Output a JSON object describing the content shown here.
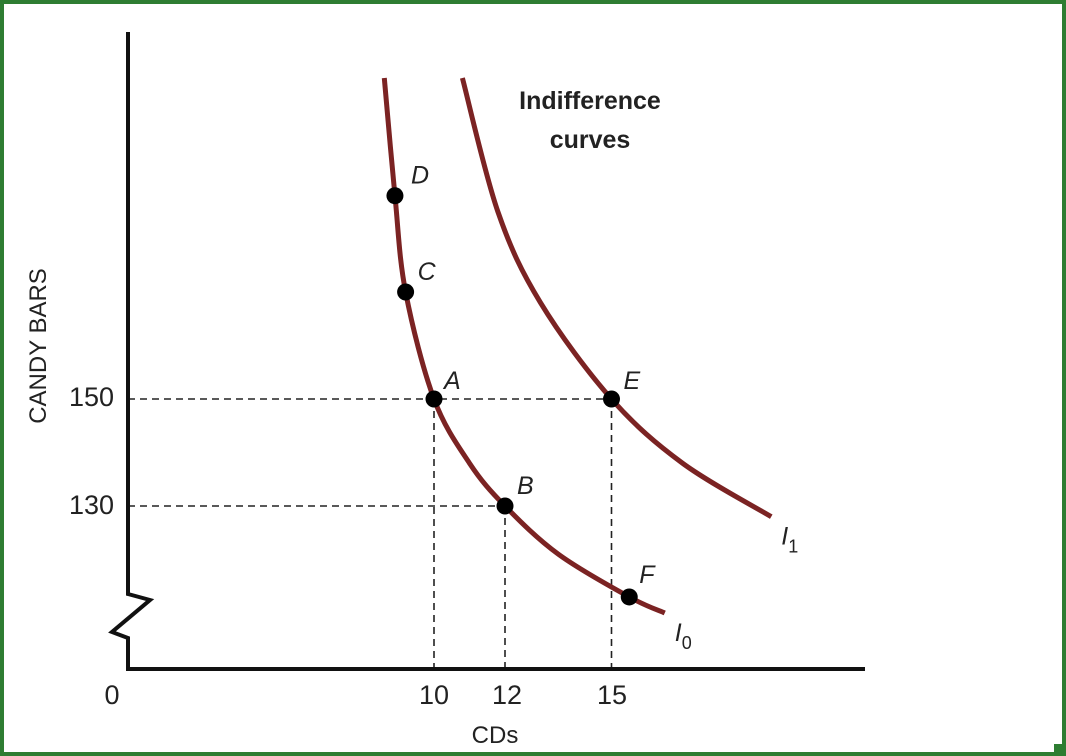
{
  "chart_data": {
    "type": "line",
    "xlabel": "CDs",
    "ylabel": "CANDY BARS",
    "origin_label": "0",
    "x_ticks": [
      "10",
      "12",
      "15"
    ],
    "y_ticks": [
      "150",
      "130"
    ],
    "annotation": [
      "Indifference",
      "curves"
    ],
    "colors": {
      "curve": "#7b2323",
      "axis": "#111111",
      "guide": "#222222",
      "point": "#000000",
      "frame": "#2e7d32"
    },
    "axis_break": true,
    "grid": false,
    "series": [
      {
        "name": "I",
        "subscript": "0",
        "points": [
          {
            "label": "D",
            "x": 8.9,
            "y": 188
          },
          {
            "label": "C",
            "x": 9.2,
            "y": 170
          },
          {
            "label": "A",
            "x": 10,
            "y": 150
          },
          {
            "label": "B",
            "x": 12,
            "y": 130
          },
          {
            "label": "F",
            "x": 15.5,
            "y": 113
          }
        ],
        "curve": [
          [
            8.6,
            210
          ],
          [
            8.9,
            188
          ],
          [
            9.2,
            170
          ],
          [
            10,
            150
          ],
          [
            11,
            138
          ],
          [
            12,
            130
          ],
          [
            13.5,
            121
          ],
          [
            15.5,
            113
          ],
          [
            16.5,
            110
          ]
        ]
      },
      {
        "name": "I",
        "subscript": "1",
        "points": [
          {
            "label": "E",
            "x": 15,
            "y": 150
          }
        ],
        "curve": [
          [
            10.8,
            210
          ],
          [
            11.8,
            185
          ],
          [
            13,
            168
          ],
          [
            15,
            150
          ],
          [
            17,
            138
          ],
          [
            19.5,
            128
          ]
        ]
      }
    ]
  }
}
